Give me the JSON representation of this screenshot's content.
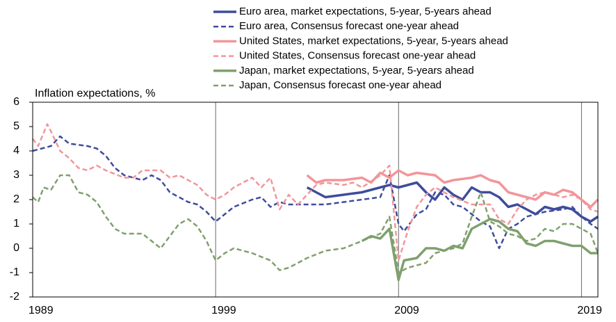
{
  "chart_data": {
    "type": "line",
    "y_label": "Inflation expectations, %",
    "xlim": [
      1989,
      2019.9
    ],
    "xticks": [
      1989,
      1999,
      2009,
      2019
    ],
    "ylim": [
      -2,
      6
    ],
    "yticks": [
      -2,
      -1,
      0,
      1,
      2,
      3,
      4,
      5,
      6
    ],
    "grid": "x",
    "legend": "top",
    "series": [
      {
        "name": "Euro area, market expectations, 5-year, 5-years ahead",
        "color": "#3f4c9c",
        "style": "solid",
        "x": [
          2004,
          2004.5,
          2005,
          2006,
          2007,
          2007.5,
          2008,
          2008.5,
          2009,
          2009.5,
          2010,
          2010.5,
          2011,
          2011.5,
          2012,
          2012.5,
          2013,
          2013.5,
          2014,
          2014.5,
          2015,
          2015.5,
          2016,
          2016.5,
          2017,
          2017.5,
          2018,
          2018.5,
          2019,
          2019.5,
          2019.9
        ],
        "values": [
          2.5,
          2.3,
          2.1,
          2.2,
          2.3,
          2.4,
          2.5,
          2.6,
          2.5,
          2.6,
          2.7,
          2.3,
          2.0,
          2.5,
          2.2,
          2.0,
          2.5,
          2.3,
          2.3,
          2.1,
          1.7,
          1.8,
          1.6,
          1.4,
          1.7,
          1.6,
          1.7,
          1.6,
          1.3,
          1.1,
          1.3
        ]
      },
      {
        "name": "Euro area, Consensus forecast one-year ahead",
        "color": "#3f4c9c",
        "style": "dashed",
        "x": [
          1989,
          1989.5,
          1990,
          1990.5,
          1991,
          1992,
          1992.5,
          1993,
          1993.5,
          1994,
          1995,
          1995.5,
          1996,
          1996.5,
          1997,
          1997.5,
          1998,
          1998.5,
          1999,
          1999.5,
          2000,
          2001,
          2001.5,
          2002,
          2002.5,
          2003,
          2004,
          2005,
          2006,
          2007,
          2008,
          2008.5,
          2009,
          2009.3,
          2010,
          2010.5,
          2011,
          2011.5,
          2012,
          2012.5,
          2013,
          2013.5,
          2014,
          2014.5,
          2015,
          2015.5,
          2016,
          2016.5,
          2017,
          2018,
          2018.5,
          2019,
          2019.5,
          2019.9
        ],
        "values": [
          4.0,
          4.1,
          4.2,
          4.6,
          4.3,
          4.2,
          4.1,
          3.8,
          3.3,
          3.0,
          2.8,
          3.0,
          2.8,
          2.3,
          2.1,
          1.9,
          1.8,
          1.5,
          1.1,
          1.4,
          1.7,
          2.0,
          2.1,
          1.7,
          1.9,
          1.8,
          1.8,
          1.8,
          1.9,
          2.0,
          2.1,
          3.0,
          1.0,
          0.7,
          1.4,
          1.6,
          2.3,
          2.2,
          1.8,
          1.7,
          1.4,
          1.1,
          0.9,
          0.0,
          0.8,
          1.0,
          1.3,
          1.4,
          1.5,
          1.6,
          1.7,
          1.3,
          1.0,
          0.8
        ]
      },
      {
        "name": "United States, market expectations, 5-year, 5-years ahead",
        "color": "#f2959a",
        "style": "solid",
        "x": [
          2004,
          2004.5,
          2005,
          2006,
          2007,
          2007.5,
          2008,
          2008.5,
          2009,
          2009.5,
          2010,
          2011,
          2011.5,
          2012,
          2013,
          2013.5,
          2014,
          2014.5,
          2015,
          2015.5,
          2016,
          2016.5,
          2017,
          2017.5,
          2018,
          2018.5,
          2019,
          2019.5,
          2019.9
        ],
        "values": [
          3.0,
          2.7,
          2.8,
          2.8,
          2.9,
          2.7,
          3.1,
          2.9,
          3.2,
          3.0,
          3.1,
          3.0,
          2.7,
          2.8,
          2.9,
          3.0,
          2.8,
          2.7,
          2.3,
          2.2,
          2.1,
          2.0,
          2.3,
          2.2,
          2.4,
          2.3,
          2.0,
          1.7,
          2.0
        ]
      },
      {
        "name": "United States, Consensus forecast one-year ahead",
        "color": "#f2959a",
        "style": "dashed",
        "x": [
          1989,
          1989.3,
          1989.8,
          1990,
          1990.5,
          1991,
          1991.5,
          1992,
          1992.5,
          1993,
          1994,
          1994.5,
          1995,
          1996,
          1996.5,
          1997,
          1998,
          1998.5,
          1999,
          1999.5,
          2000,
          2001,
          2001.5,
          2002,
          2002.5,
          2003,
          2003.5,
          2004,
          2004.5,
          2005,
          2006,
          2006.5,
          2007,
          2008,
          2008.5,
          2009,
          2009.5,
          2010,
          2010.5,
          2011,
          2011.5,
          2012,
          2013,
          2014,
          2014.5,
          2015,
          2015.5,
          2016,
          2016.5,
          2017,
          2018,
          2018.5,
          2019,
          2019.5,
          2019.9
        ],
        "values": [
          4.5,
          4.2,
          5.1,
          4.8,
          4.0,
          3.7,
          3.3,
          3.2,
          3.4,
          3.2,
          2.9,
          2.9,
          3.2,
          3.2,
          2.9,
          3.0,
          2.6,
          2.2,
          2.0,
          2.2,
          2.5,
          2.9,
          2.5,
          2.9,
          1.6,
          2.2,
          1.8,
          2.2,
          2.6,
          2.7,
          2.6,
          2.7,
          2.5,
          3.0,
          3.4,
          -0.5,
          0.7,
          1.7,
          2.2,
          2.5,
          2.3,
          2.1,
          1.8,
          1.8,
          1.2,
          1.0,
          1.6,
          2.0,
          2.2,
          2.3,
          2.1,
          2.2,
          2.0,
          1.6,
          1.5
        ]
      },
      {
        "name": "Japan, market expectations, 5-year, 5-years ahead",
        "color": "#7fa06e",
        "style": "solid",
        "x": [
          2007,
          2007.5,
          2008,
          2008.5,
          2009,
          2009.3,
          2010,
          2010.5,
          2011,
          2011.5,
          2012,
          2012.5,
          2013,
          2013.5,
          2014,
          2014.5,
          2015,
          2015.5,
          2016,
          2016.5,
          2017,
          2017.5,
          2018,
          2018.5,
          2019,
          2019.5,
          2019.9
        ],
        "values": [
          0.3,
          0.5,
          0.4,
          0.8,
          -1.3,
          -0.5,
          -0.4,
          0.0,
          0.0,
          -0.1,
          0.1,
          0.0,
          0.8,
          1.0,
          1.2,
          1.1,
          0.8,
          0.7,
          0.2,
          0.1,
          0.3,
          0.3,
          0.2,
          0.1,
          0.1,
          -0.2,
          -0.2
        ]
      },
      {
        "name": "Japan, Consensus forecast one-year ahead",
        "color": "#7fa06e",
        "style": "dashed",
        "x": [
          1989,
          1989.3,
          1989.6,
          1990,
          1990.5,
          1991,
          1991.5,
          1992,
          1992.5,
          1993,
          1993.5,
          1994,
          1995,
          1995.5,
          1996,
          1996.5,
          1997,
          1997.5,
          1998,
          1998.5,
          1999,
          1999.5,
          2000,
          2001,
          2002,
          2002.5,
          2003,
          2003.5,
          2004,
          2005,
          2006,
          2007,
          2008,
          2008.5,
          2009,
          2009.5,
          2010,
          2010.5,
          2011,
          2012,
          2012.5,
          2013,
          2013.5,
          2014,
          2014.5,
          2015,
          2015.5,
          2016,
          2016.5,
          2017,
          2017.5,
          2018,
          2018.5,
          2019,
          2019.5,
          2019.9
        ],
        "values": [
          2.1,
          1.9,
          2.5,
          2.4,
          3.0,
          3.0,
          2.3,
          2.2,
          1.9,
          1.3,
          0.8,
          0.6,
          0.6,
          0.3,
          0.0,
          0.5,
          1.0,
          1.2,
          0.9,
          0.3,
          -0.5,
          -0.2,
          0.0,
          -0.2,
          -0.5,
          -0.9,
          -0.8,
          -0.6,
          -0.4,
          -0.1,
          0.0,
          0.3,
          0.6,
          1.3,
          -1.0,
          -0.8,
          -0.7,
          -0.6,
          -0.2,
          0.0,
          0.2,
          1.3,
          2.3,
          1.1,
          0.9,
          0.6,
          0.5,
          0.3,
          0.4,
          0.8,
          0.7,
          1.0,
          1.0,
          0.8,
          0.6,
          -0.2
        ]
      }
    ]
  }
}
